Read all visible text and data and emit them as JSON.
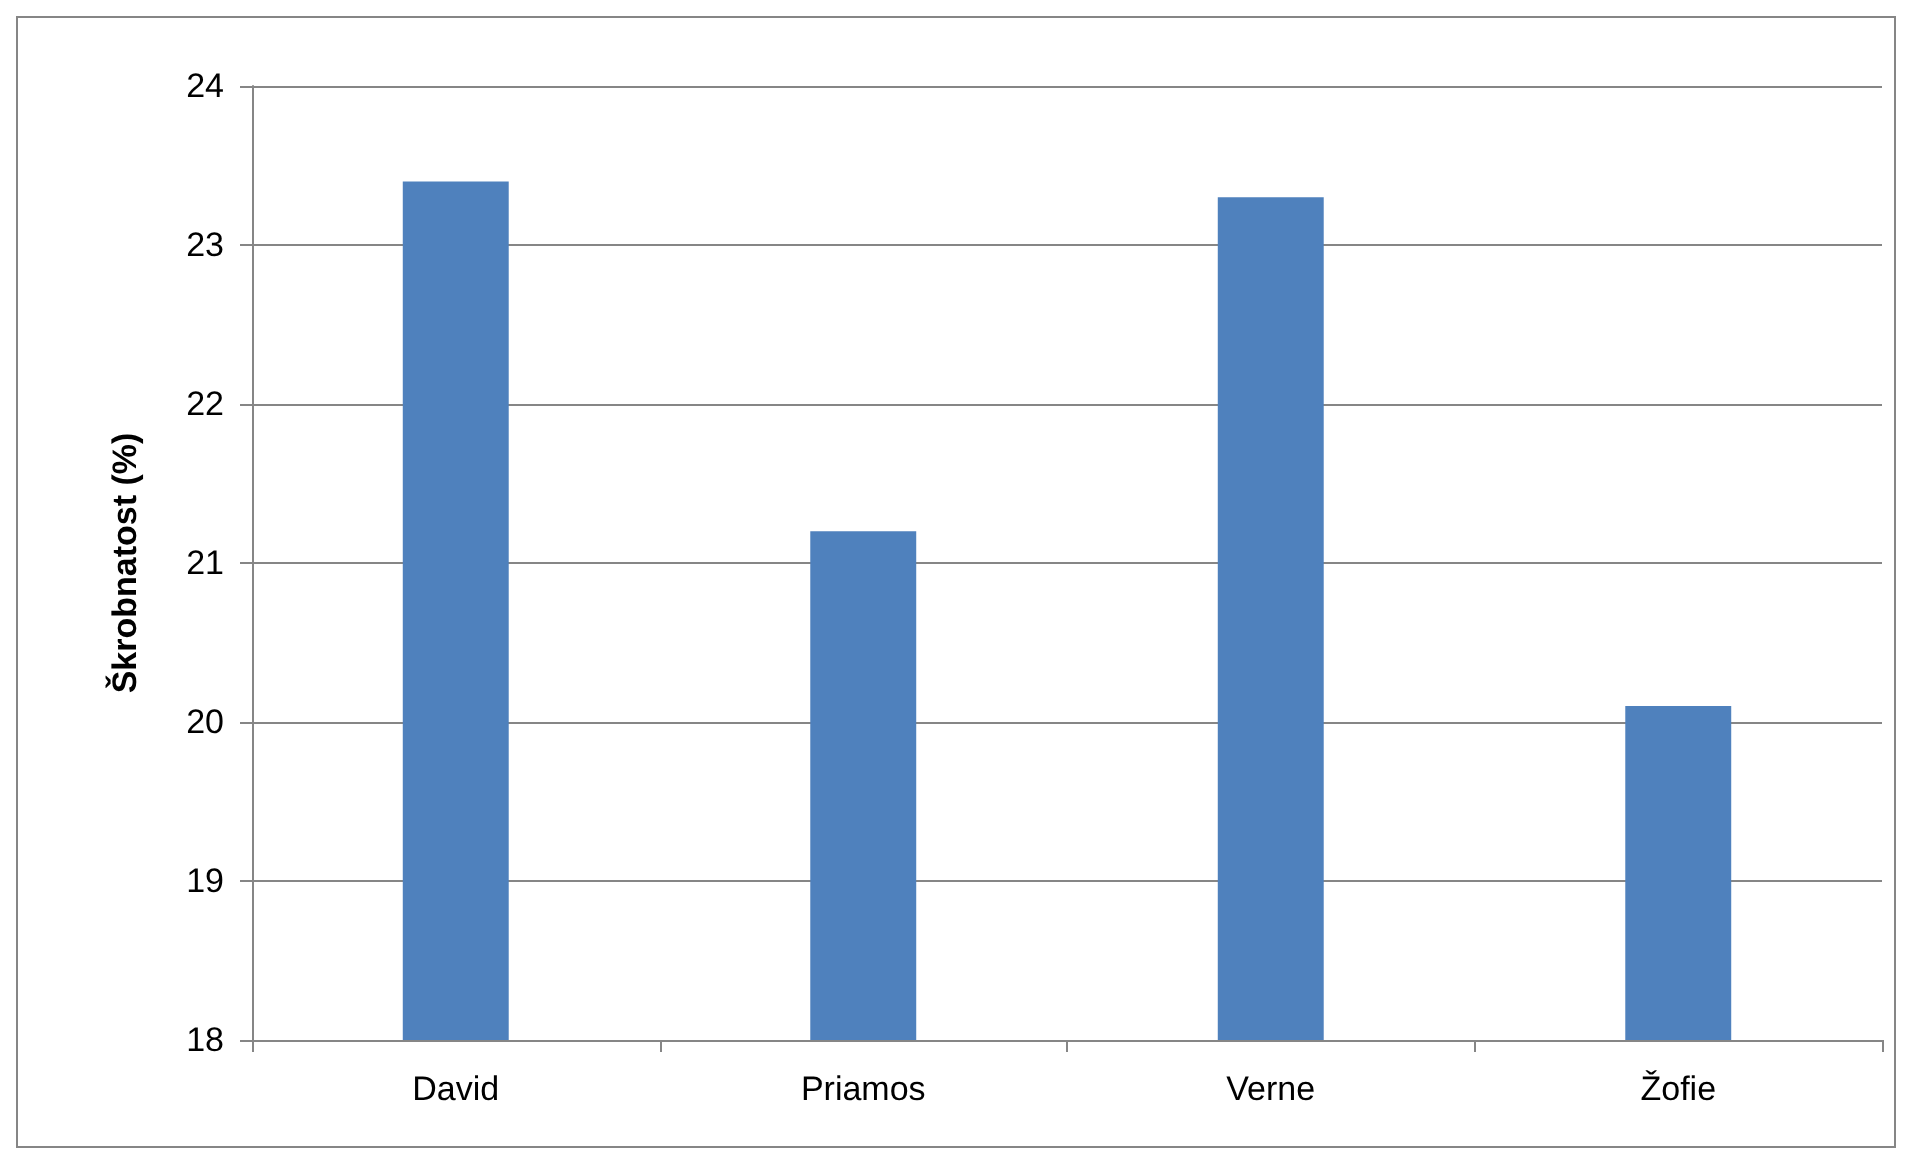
{
  "chart_data": {
    "type": "bar",
    "ylabel": "Škrobnatost (%)",
    "categories": [
      "David",
      "Priamos",
      "Verne",
      "Žofie"
    ],
    "values": [
      23.4,
      21.2,
      23.3,
      20.1
    ],
    "color": "#4f81bd",
    "ylim": [
      18,
      24
    ],
    "yticks": [
      18,
      19,
      20,
      21,
      22,
      23,
      24
    ],
    "grid": "y"
  }
}
